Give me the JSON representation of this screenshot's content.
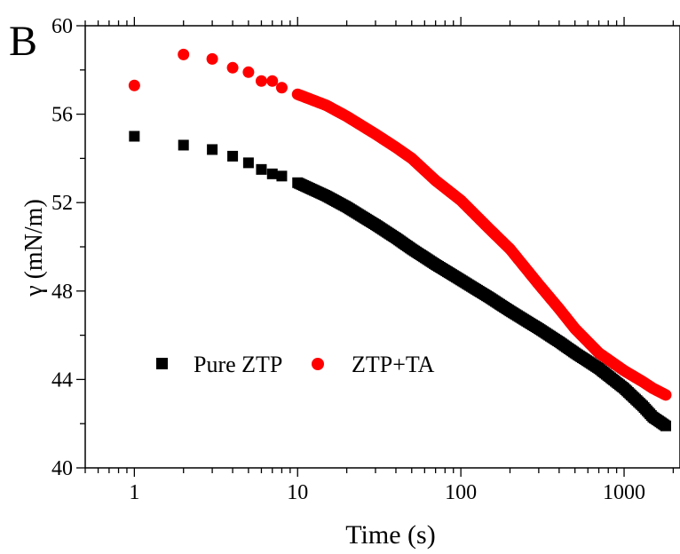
{
  "chart_data": {
    "type": "scatter",
    "panel_label": "B",
    "xlabel": "Time (s)",
    "ylabel": "γ (mN/m)",
    "xscale": "log",
    "xlim": [
      0.5,
      2200
    ],
    "ylim": [
      40,
      60
    ],
    "x_ticks": [
      1,
      10,
      100,
      1000
    ],
    "x_tick_labels": [
      "1",
      "10",
      "100",
      "1000"
    ],
    "y_ticks": [
      40,
      44,
      48,
      52,
      56,
      60
    ],
    "y_tick_labels": [
      "40",
      "44",
      "48",
      "52",
      "56",
      "60"
    ],
    "grid": false,
    "legend_position": "center-left",
    "series": [
      {
        "name": "Pure ZTP",
        "marker": "square",
        "color": "#000000",
        "points": [
          [
            1,
            55.0
          ],
          [
            2,
            54.6
          ],
          [
            3,
            54.4
          ],
          [
            4,
            54.1
          ],
          [
            5,
            53.8
          ],
          [
            6,
            53.5
          ],
          [
            7,
            53.3
          ],
          [
            8,
            53.2
          ],
          [
            10,
            52.9
          ],
          [
            15,
            52.3
          ],
          [
            20,
            51.8
          ],
          [
            30,
            51.0
          ],
          [
            40,
            50.4
          ],
          [
            50,
            49.9
          ],
          [
            70,
            49.2
          ],
          [
            100,
            48.5
          ],
          [
            150,
            47.7
          ],
          [
            200,
            47.1
          ],
          [
            300,
            46.3
          ],
          [
            400,
            45.7
          ],
          [
            500,
            45.2
          ],
          [
            700,
            44.5
          ],
          [
            1000,
            43.6
          ],
          [
            1300,
            42.8
          ],
          [
            1500,
            42.3
          ],
          [
            1800,
            41.9
          ]
        ]
      },
      {
        "name": "ZTP+TA",
        "marker": "circle",
        "color": "#ff0000",
        "points": [
          [
            1,
            57.3
          ],
          [
            2,
            58.7
          ],
          [
            3,
            58.5
          ],
          [
            4,
            58.1
          ],
          [
            5,
            57.9
          ],
          [
            6,
            57.5
          ],
          [
            7,
            57.5
          ],
          [
            8,
            57.2
          ],
          [
            10,
            56.9
          ],
          [
            15,
            56.4
          ],
          [
            20,
            55.9
          ],
          [
            30,
            55.1
          ],
          [
            40,
            54.5
          ],
          [
            50,
            54.0
          ],
          [
            70,
            53.0
          ],
          [
            100,
            52.1
          ],
          [
            150,
            50.8
          ],
          [
            200,
            49.9
          ],
          [
            300,
            48.3
          ],
          [
            400,
            47.2
          ],
          [
            500,
            46.3
          ],
          [
            700,
            45.2
          ],
          [
            1000,
            44.4
          ],
          [
            1300,
            43.9
          ],
          [
            1500,
            43.6
          ],
          [
            1800,
            43.3
          ]
        ]
      }
    ]
  }
}
